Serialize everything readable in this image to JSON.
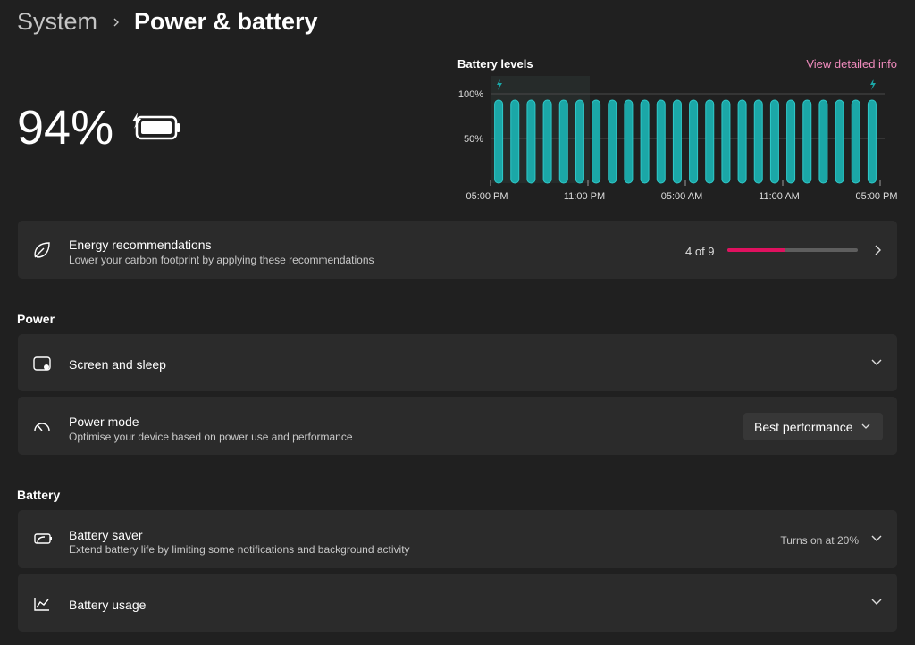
{
  "header": {
    "section": "System",
    "title": "Power & battery"
  },
  "battery": {
    "percent": "94%"
  },
  "chart_link": "View detailed info",
  "chart_data": {
    "type": "bar",
    "title": "Battery levels",
    "values": [
      93,
      93,
      93,
      93,
      93,
      93,
      93,
      93,
      93,
      93,
      93,
      93,
      93,
      93,
      93,
      93,
      93,
      93,
      93,
      93,
      93,
      93,
      93,
      93
    ],
    "color": "#1ba7a7",
    "xlim": [
      0,
      24
    ],
    "xticks": [
      {
        "value": 0,
        "label": "05:00 PM"
      },
      {
        "value": 6,
        "label": "11:00 PM"
      },
      {
        "value": 12,
        "label": "05:00 AM"
      },
      {
        "value": 18,
        "label": "11:00 AM"
      },
      {
        "value": 24,
        "label": "05:00 PM"
      }
    ],
    "ylim": [
      0,
      100
    ],
    "yticks": [
      {
        "value": 100,
        "label": "100%"
      },
      {
        "value": 50,
        "label": "50%"
      }
    ],
    "grid": true
  },
  "energy": {
    "title": "Energy recommendations",
    "description": "Lower your carbon footprint by applying these recommendations",
    "progress": {
      "label": "4 of 9",
      "value": 4,
      "max": 9
    }
  },
  "power": {
    "heading": "Power",
    "items": [
      {
        "title": "Screen and sleep"
      },
      {
        "title": "Power mode",
        "description": "Optimise your device based on power use and performance",
        "dropdown": "Best performance"
      }
    ]
  },
  "battery_section": {
    "heading": "Battery",
    "items": [
      {
        "title": "Battery saver",
        "description": "Extend battery life by limiting some notifications and background activity",
        "status": "Turns on at 20%"
      },
      {
        "title": "Battery usage"
      }
    ]
  }
}
